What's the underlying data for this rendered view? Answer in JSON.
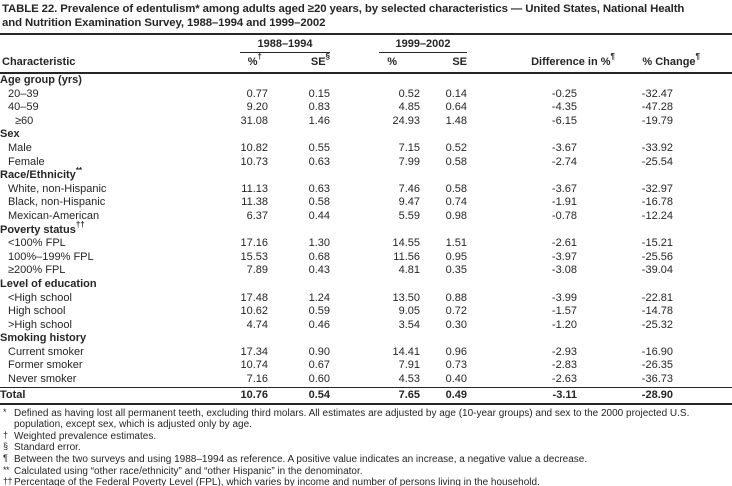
{
  "title": {
    "line1": "TABLE 22. Prevalence of edentulism* among adults aged ≥20 years, by selected characteristics — United States, National Health",
    "line2": "and Nutrition Examination Survey, 1988–1994 and 1999–2002"
  },
  "table": {
    "col_groups": [
      {
        "label": "1988–1994"
      },
      {
        "label": "1999–2002"
      }
    ],
    "headers": {
      "characteristic": "Characteristic",
      "pct1": "%",
      "pct1_sup": "†",
      "se1": "SE",
      "se1_sup": "§",
      "pct2": "%",
      "se2": "SE",
      "diff": "Difference in %",
      "diff_sup": "¶",
      "change": "% Change",
      "change_sup": "¶"
    },
    "rows": [
      {
        "label": "Age group (yrs)",
        "type": "section",
        "indent": 0,
        "values": []
      },
      {
        "label": "20–39",
        "type": "data",
        "indent": 1,
        "values": [
          "0.77",
          "0.15",
          "0.52",
          "0.14",
          "-0.25",
          "-32.47"
        ]
      },
      {
        "label": "40–59",
        "type": "data",
        "indent": 1,
        "values": [
          "9.20",
          "0.83",
          "4.85",
          "0.64",
          "-4.35",
          "-47.28"
        ]
      },
      {
        "label": "≥60",
        "type": "data",
        "indent": 2,
        "values": [
          "31.08",
          "1.46",
          "24.93",
          "1.48",
          "-6.15",
          "-19.79"
        ]
      },
      {
        "label": "Sex",
        "type": "section",
        "indent": 0,
        "values": []
      },
      {
        "label": "Male",
        "type": "data",
        "indent": 1,
        "values": [
          "10.82",
          "0.55",
          "7.15",
          "0.52",
          "-3.67",
          "-33.92"
        ]
      },
      {
        "label": "Female",
        "type": "data",
        "indent": 1,
        "values": [
          "10.73",
          "0.63",
          "7.99",
          "0.58",
          "-2.74",
          "-25.54"
        ]
      },
      {
        "label": "Race/Ethnicity",
        "sup": "**",
        "type": "section",
        "indent": 0,
        "values": []
      },
      {
        "label": "White, non-Hispanic",
        "type": "data",
        "indent": 1,
        "values": [
          "11.13",
          "0.63",
          "7.46",
          "0.58",
          "-3.67",
          "-32.97"
        ]
      },
      {
        "label": "Black, non-Hispanic",
        "type": "data",
        "indent": 1,
        "values": [
          "11.38",
          "0.58",
          "9.47",
          "0.74",
          "-1.91",
          "-16.78"
        ]
      },
      {
        "label": "Mexican-American",
        "type": "data",
        "indent": 1,
        "values": [
          "6.37",
          "0.44",
          "5.59",
          "0.98",
          "-0.78",
          "-12.24"
        ]
      },
      {
        "label": "Poverty status",
        "sup": "††",
        "type": "section",
        "indent": 0,
        "values": []
      },
      {
        "label": "<100% FPL",
        "type": "data",
        "indent": 1,
        "values": [
          "17.16",
          "1.30",
          "14.55",
          "1.51",
          "-2.61",
          "-15.21"
        ]
      },
      {
        "label": "100%–199% FPL",
        "type": "data",
        "indent": 1,
        "values": [
          "15.53",
          "0.68",
          "11.56",
          "0.95",
          "-3.97",
          "-25.56"
        ]
      },
      {
        "label": "≥200% FPL",
        "type": "data",
        "indent": 1,
        "values": [
          "7.89",
          "0.43",
          "4.81",
          "0.35",
          "-3.08",
          "-39.04"
        ]
      },
      {
        "label": "Level of education",
        "type": "section",
        "indent": 0,
        "values": []
      },
      {
        "label": "<High school",
        "type": "data",
        "indent": 1,
        "values": [
          "17.48",
          "1.24",
          "13.50",
          "0.88",
          "-3.99",
          "-22.81"
        ]
      },
      {
        "label": "High school",
        "type": "data",
        "indent": 1,
        "values": [
          "10.62",
          "0.59",
          "9.05",
          "0.72",
          "-1.57",
          "-14.78"
        ]
      },
      {
        "label": ">High school",
        "type": "data",
        "indent": 1,
        "values": [
          "4.74",
          "0.46",
          "3.54",
          "0.30",
          "-1.20",
          "-25.32"
        ]
      },
      {
        "label": "Smoking history",
        "type": "section",
        "indent": 0,
        "values": []
      },
      {
        "label": "Current smoker",
        "type": "data",
        "indent": 1,
        "values": [
          "17.34",
          "0.90",
          "14.41",
          "0.96",
          "-2.93",
          "-16.90"
        ]
      },
      {
        "label": "Former smoker",
        "type": "data",
        "indent": 1,
        "values": [
          "10.74",
          "0.67",
          "7.91",
          "0.73",
          "-2.83",
          "-26.35"
        ]
      },
      {
        "label": "Never smoker",
        "type": "data",
        "indent": 1,
        "values": [
          "7.16",
          "0.60",
          "4.53",
          "0.40",
          "-2.63",
          "-36.73"
        ]
      },
      {
        "label": "Total",
        "type": "total",
        "indent": 0,
        "values": [
          "10.76",
          "0.54",
          "7.65",
          "0.49",
          "-3.11",
          "-28.90"
        ]
      }
    ]
  },
  "footnotes": [
    {
      "marker": "*",
      "text": "Defined as having lost all permanent teeth, excluding third molars. All estimates are adjusted by age (10-year groups) and sex to the 2000 projected U.S. population, except sex, which is adjusted only by age."
    },
    {
      "marker": "†",
      "text": "Weighted prevalence estimates."
    },
    {
      "marker": "§",
      "text": "Standard error."
    },
    {
      "marker": "¶",
      "text": "Between the two surveys and using 1988–1994 as reference. A positive value indicates an increase, a negative value a decrease."
    },
    {
      "marker": "**",
      "text": "Calculated using “other race/ethnicity” and “other Hispanic” in the denominator."
    },
    {
      "marker": "††",
      "text": "Percentage of the Federal Poverty Level (FPL), which varies by income and number of persons living in the household."
    }
  ]
}
